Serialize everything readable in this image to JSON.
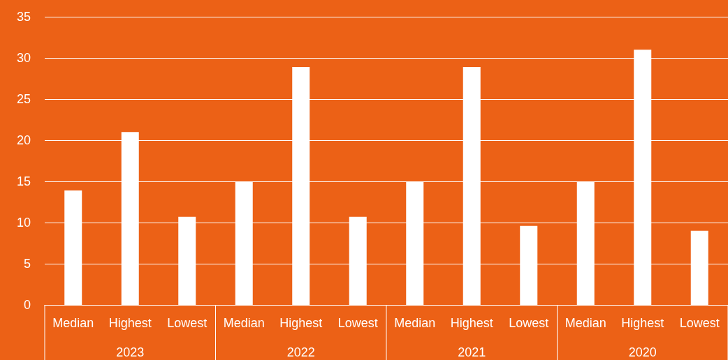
{
  "chart_data": {
    "type": "bar",
    "categories": [
      "Median",
      "Highest",
      "Lowest",
      "Median",
      "Highest",
      "Lowest",
      "Median",
      "Highest",
      "Lowest",
      "Median",
      "Highest",
      "Lowest"
    ],
    "values": [
      13.9,
      21,
      10.7,
      15,
      28.9,
      10.7,
      15,
      28.9,
      9.6,
      15,
      31,
      9
    ],
    "color": "#ffffff",
    "annotations": [
      "2023",
      "2022",
      "2021",
      "2020"
    ],
    "ylim": [
      0,
      35
    ],
    "yticks": [
      0,
      5,
      10,
      15,
      20,
      25,
      30,
      35
    ],
    "grid": "y"
  }
}
